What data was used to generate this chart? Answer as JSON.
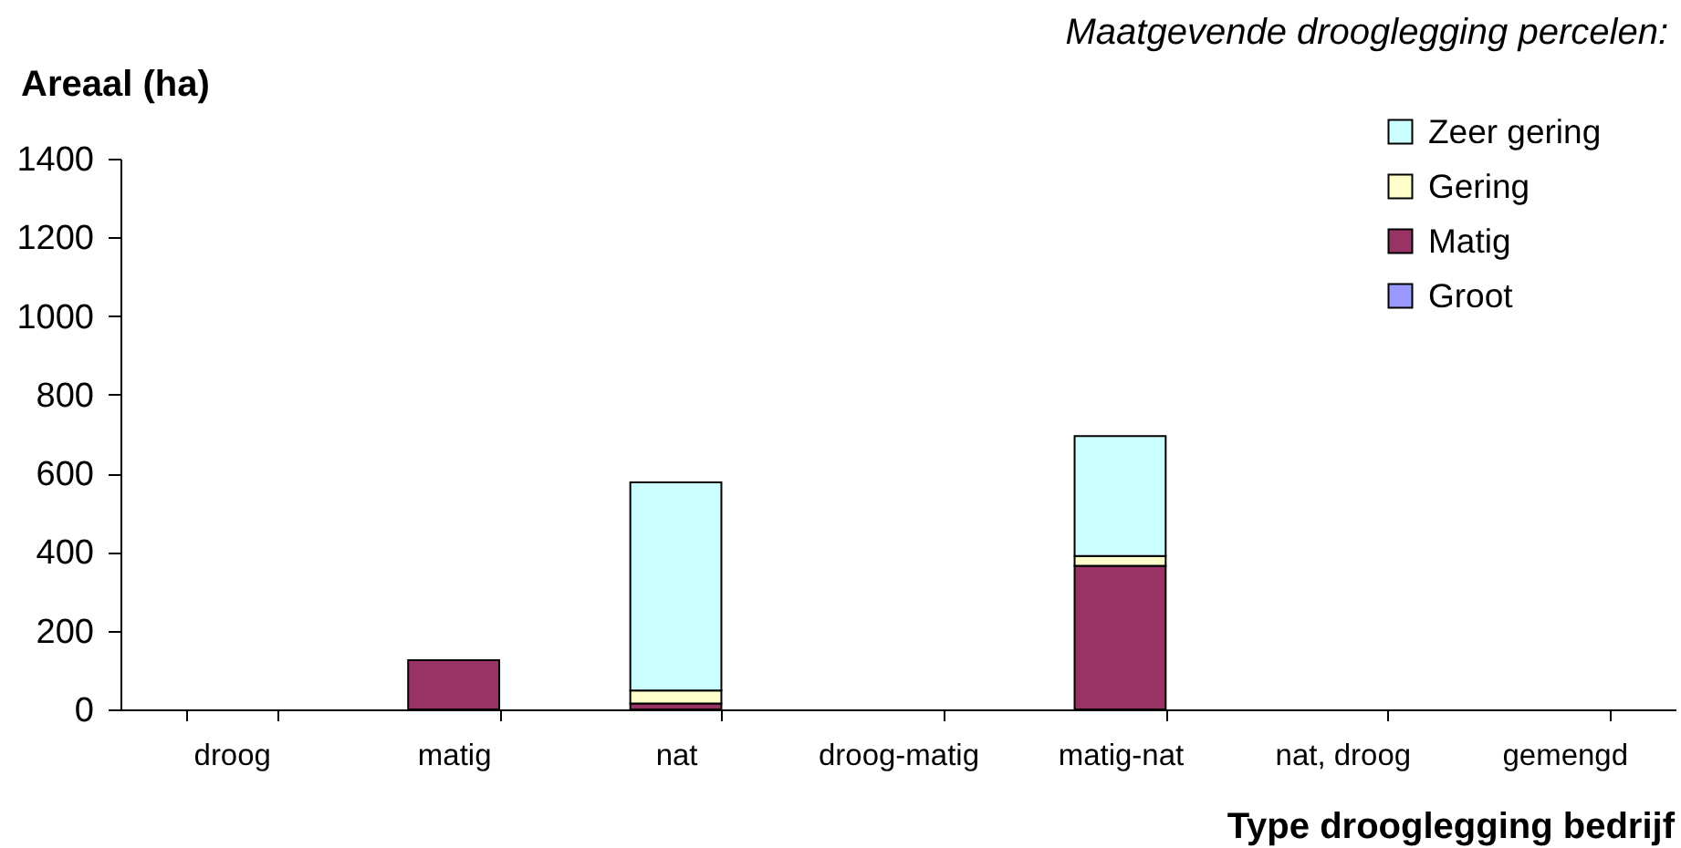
{
  "chart_data": {
    "type": "bar",
    "stacked": true,
    "legend_title": "Maatgevende drooglegging percelen:",
    "xlabel": "Type drooglegging bedrijf",
    "ylabel": "Areaal (ha)",
    "categories": [
      "droog",
      "matig",
      "nat",
      "droog-matig",
      "matig-nat",
      "nat, droog",
      "gemengd"
    ],
    "series": [
      {
        "name": "Groot",
        "color": "#9999ff",
        "values": [
          0,
          0,
          0,
          0,
          0,
          0,
          0
        ]
      },
      {
        "name": "Matig",
        "color": "#993366",
        "values": [
          0,
          125,
          15,
          0,
          365,
          0,
          0
        ]
      },
      {
        "name": "Gering",
        "color": "#ffffcc",
        "values": [
          0,
          0,
          33,
          0,
          25,
          0,
          0
        ]
      },
      {
        "name": "Zeer gering",
        "color": "#ccffff",
        "values": [
          0,
          0,
          529,
          0,
          305,
          0,
          0
        ]
      }
    ],
    "ylim": [
      0,
      1400
    ],
    "yticks": [
      0,
      200,
      400,
      600,
      800,
      1000,
      1200,
      1400
    ],
    "legend": "top right"
  }
}
